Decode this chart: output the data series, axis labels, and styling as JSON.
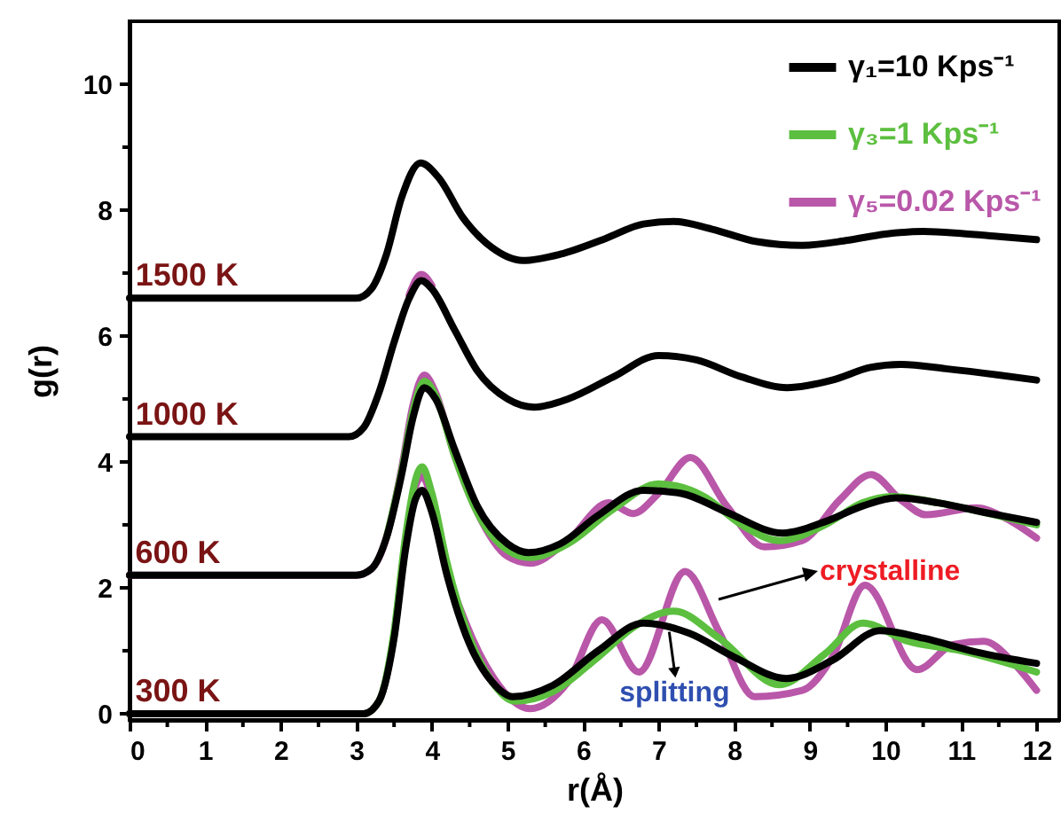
{
  "chart_data": {
    "type": "line",
    "xlabel": "r(Å)",
    "ylabel": "g(r)",
    "xlim": [
      0,
      12.3
    ],
    "ylim": [
      -0.1,
      11
    ],
    "xticks": [
      0,
      {
        "value": 0.5,
        "label": null
      },
      1,
      {
        "value": 1.5,
        "label": null
      },
      2,
      {
        "value": 2.5,
        "label": null
      },
      3,
      {
        "value": 3.5,
        "label": null
      },
      4,
      {
        "value": 4.5,
        "label": null
      },
      5,
      {
        "value": 5.5,
        "label": null
      },
      6,
      {
        "value": 6.5,
        "label": null
      },
      7,
      {
        "value": 7.5,
        "label": null
      },
      8,
      {
        "value": 8.5,
        "label": null
      },
      9,
      {
        "value": 9.5,
        "label": null
      },
      10,
      {
        "value": 10.5,
        "label": null
      },
      11,
      {
        "value": 11.5,
        "label": null
      },
      12
    ],
    "yticks": [
      0,
      {
        "value": 1,
        "label": null
      },
      2,
      {
        "value": 3,
        "label": null
      },
      4,
      {
        "value": 5,
        "label": null
      },
      6,
      {
        "value": 7,
        "label": null
      },
      8,
      {
        "value": 9,
        "label": null
      },
      10
    ],
    "legend": "top right",
    "line_style": "solid",
    "marker": "none",
    "grid": false,
    "series": [
      {
        "name": "γ₁=10 Kps⁻¹",
        "color": "#000000",
        "x": [
          0,
          3.1,
          3.3,
          3.5,
          3.65,
          3.78,
          3.87,
          4.0,
          4.2,
          4.5,
          4.8,
          5.07,
          5.6,
          6.2,
          6.8,
          7.4,
          8.0,
          8.69,
          9.3,
          9.93,
          10.5,
          11.2,
          12
        ],
        "values": [
          0,
          0,
          0.2,
          1.2,
          2.6,
          3.4,
          3.55,
          3.2,
          2.2,
          1.1,
          0.5,
          0.27,
          0.45,
          1.0,
          1.44,
          1.28,
          0.9,
          0.56,
          0.85,
          1.32,
          1.2,
          0.98,
          0.8
        ]
      },
      {
        "name": "γ₃=1 Kps⁻¹",
        "color": "#5cbf3f",
        "x": [
          0,
          3.1,
          3.3,
          3.5,
          3.65,
          3.78,
          3.87,
          4.0,
          4.2,
          4.5,
          4.8,
          5.1,
          5.6,
          6.2,
          6.7,
          7.2,
          7.8,
          8.6,
          9.2,
          9.7,
          10.3,
          11.0,
          12
        ],
        "values": [
          0,
          0,
          0.2,
          1.3,
          2.8,
          3.7,
          3.92,
          3.5,
          2.4,
          1.2,
          0.5,
          0.2,
          0.35,
          0.9,
          1.4,
          1.63,
          1.2,
          0.46,
          0.95,
          1.44,
          1.15,
          1.0,
          0.66
        ]
      },
      {
        "name": "γ₅=0.02 Kps⁻¹",
        "color": "#b957a9",
        "x": [
          0,
          3.1,
          3.3,
          3.5,
          3.65,
          3.78,
          3.87,
          4.0,
          4.2,
          4.45,
          4.8,
          5.3,
          5.8,
          6.25,
          6.74,
          7.35,
          7.8,
          8.27,
          8.9,
          9.3,
          9.73,
          10.42,
          10.9,
          11.3,
          11.7,
          12
        ],
        "values": [
          0,
          0,
          0.2,
          1.25,
          2.7,
          3.6,
          3.77,
          3.4,
          2.3,
          1.44,
          0.6,
          0.08,
          0.5,
          1.49,
          0.66,
          2.26,
          1.3,
          0.27,
          0.37,
          0.9,
          2.04,
          0.7,
          1.1,
          1.15,
          0.8,
          0.37
        ]
      },
      {
        "color": "#000000",
        "x": [
          0,
          3.0,
          3.2,
          3.4,
          3.6,
          3.75,
          3.9,
          4.05,
          4.3,
          4.6,
          5.0,
          5.28,
          5.7,
          6.2,
          6.8,
          7.3,
          7.9,
          8.64,
          9.2,
          9.7,
          10.14,
          10.7,
          11.3,
          12
        ],
        "values": [
          2.2,
          2.2,
          2.3,
          2.8,
          3.8,
          4.7,
          5.18,
          5.0,
          4.2,
          3.3,
          2.7,
          2.56,
          2.7,
          3.15,
          3.55,
          3.5,
          3.2,
          2.87,
          3.05,
          3.3,
          3.43,
          3.35,
          3.2,
          3.04
        ]
      },
      {
        "color": "#5cbf3f",
        "x": [
          3.4,
          3.6,
          3.75,
          3.9,
          4.05,
          4.3,
          4.6,
          5.0,
          5.3,
          5.8,
          6.4,
          7.0,
          7.6,
          8.1,
          8.6,
          9.2,
          9.7,
          10.1,
          10.7,
          11.3,
          12
        ],
        "values": [
          2.8,
          3.85,
          4.8,
          5.28,
          5.05,
          4.1,
          3.2,
          2.6,
          2.48,
          2.7,
          3.25,
          3.65,
          3.45,
          3.0,
          2.75,
          3.0,
          3.35,
          3.45,
          3.35,
          3.2,
          3.0
        ]
      },
      {
        "color": "#b957a9",
        "x": [
          0,
          3.0,
          3.2,
          3.4,
          3.6,
          3.75,
          3.9,
          4.05,
          4.3,
          4.6,
          5.0,
          5.3,
          5.8,
          6.34,
          6.66,
          7.0,
          7.42,
          7.9,
          8.4,
          8.9,
          9.4,
          9.81,
          10.2,
          10.54,
          11.2,
          11.6,
          12
        ],
        "values": [
          2.2,
          2.2,
          2.3,
          2.8,
          3.9,
          4.9,
          5.38,
          5.1,
          4.1,
          3.2,
          2.5,
          2.39,
          2.75,
          3.35,
          3.18,
          3.5,
          4.07,
          3.3,
          2.65,
          2.75,
          3.4,
          3.8,
          3.4,
          3.16,
          3.27,
          3.1,
          2.79
        ]
      },
      {
        "color": "#000000",
        "x": [
          0,
          2.9,
          3.1,
          3.3,
          3.5,
          3.7,
          3.86,
          4.0,
          4.3,
          4.6,
          5.0,
          5.35,
          5.8,
          6.4,
          7.0,
          7.5,
          8.1,
          8.7,
          9.3,
          9.8,
          10.2,
          10.8,
          11.5,
          12
        ],
        "values": [
          4.4,
          4.4,
          4.55,
          5.1,
          5.9,
          6.6,
          6.88,
          6.75,
          6.1,
          5.45,
          5.0,
          4.87,
          5.0,
          5.35,
          5.69,
          5.62,
          5.35,
          5.18,
          5.3,
          5.5,
          5.55,
          5.48,
          5.38,
          5.3
        ]
      },
      {
        "color": "#b957a9",
        "x": [
          3.7,
          3.86,
          4.0
        ],
        "values": [
          6.65,
          6.98,
          6.8
        ]
      },
      {
        "color": "#000000",
        "x": [
          0,
          3.0,
          3.2,
          3.4,
          3.6,
          3.85,
          4.1,
          4.4,
          4.8,
          5.2,
          5.7,
          6.3,
          6.8,
          7.2,
          7.7,
          8.3,
          8.9,
          9.5,
          10.0,
          10.5,
          11.0,
          11.5,
          12
        ],
        "values": [
          6.6,
          6.6,
          6.75,
          7.3,
          8.2,
          8.75,
          8.5,
          7.9,
          7.4,
          7.2,
          7.3,
          7.55,
          7.78,
          7.82,
          7.7,
          7.5,
          7.44,
          7.52,
          7.62,
          7.66,
          7.63,
          7.58,
          7.53
        ]
      }
    ],
    "annotations": [
      {
        "text": "300 K",
        "x": 0.64,
        "y": 0
      },
      {
        "text": "600 K",
        "x": 0.64,
        "y": 2.2
      },
      {
        "text": "1000 K",
        "x": 0.76,
        "y": 4.4
      },
      {
        "text": "1500 K",
        "x": 0.76,
        "y": 6.6
      },
      "crystalline",
      {
        "text": "splitting",
        "x": 7.14,
        "y": 1.3
      }
    ]
  }
}
